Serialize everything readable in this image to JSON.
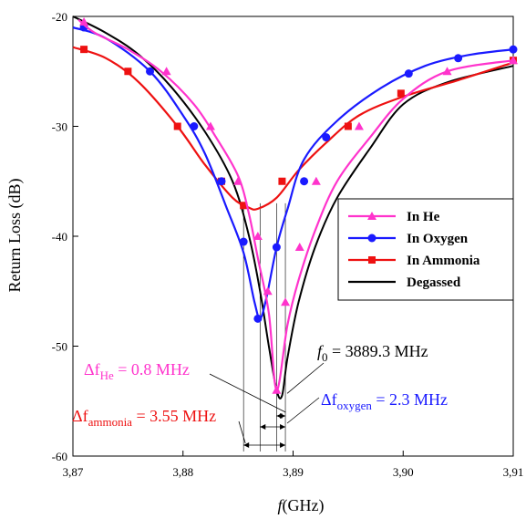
{
  "chart_data": {
    "type": "line",
    "xlabel": "(GHz)",
    "xlabel_var": "f",
    "ylabel": "Return Loss (dB)",
    "xlim": [
      3.87,
      3.91
    ],
    "ylim": [
      -60,
      -20
    ],
    "x_ticks": [
      3.87,
      3.88,
      3.89,
      3.9,
      3.91
    ],
    "x_tick_labels": [
      "3,87",
      "3,88",
      "3,89",
      "3,90",
      "3,91"
    ],
    "y_ticks": [
      -60,
      -50,
      -40,
      -30,
      -20
    ],
    "y_tick_labels": [
      "-60",
      "-50",
      "-40",
      "-30",
      "-20"
    ],
    "legend_position": "right",
    "series": [
      {
        "name": "In He",
        "color": "#ff33cc",
        "marker": "triangle",
        "x": [
          3.8705,
          3.872,
          3.875,
          3.878,
          3.881,
          3.883,
          3.885,
          3.886,
          3.8868,
          3.8878,
          3.8885,
          3.8895,
          3.8905,
          3.892,
          3.894,
          3.897,
          3.9,
          3.904,
          3.91
        ],
        "y": [
          -20.3,
          -21.5,
          -23,
          -25,
          -28,
          -31,
          -34.5,
          -38,
          -42,
          -47,
          -54,
          -48,
          -44,
          -39.5,
          -35,
          -31,
          -27.5,
          -25,
          -24
        ],
        "marker_x": [
          3.871,
          3.8785,
          3.8825,
          3.885,
          3.8868,
          3.8877,
          3.8885,
          3.8893,
          3.8906,
          3.8921,
          3.896,
          3.904,
          3.91
        ],
        "marker_y": [
          -20.5,
          -25,
          -30,
          -35,
          -40,
          -45,
          -54,
          -46,
          -41,
          -35,
          -30,
          -25,
          -24
        ]
      },
      {
        "name": "In Oxygen",
        "color": "#1a1aff",
        "marker": "circle",
        "x": [
          3.87,
          3.873,
          3.877,
          3.88,
          3.882,
          3.884,
          3.8855,
          3.8865,
          3.887,
          3.8876,
          3.8885,
          3.8895,
          3.891,
          3.894,
          3.898,
          3.902,
          3.906,
          3.91
        ],
        "y": [
          -21,
          -22,
          -25,
          -29,
          -32.5,
          -37.5,
          -41.5,
          -46,
          -47.5,
          -45.5,
          -41,
          -37.5,
          -33,
          -29.5,
          -26.5,
          -24.5,
          -23.5,
          -23
        ],
        "marker_x": [
          3.871,
          3.877,
          3.881,
          3.8835,
          3.8855,
          3.8868,
          3.8885,
          3.891,
          3.893,
          3.9005,
          3.905,
          3.91
        ],
        "marker_y": [
          -21,
          -25,
          -30,
          -35,
          -40.5,
          -47.5,
          -41,
          -35,
          -31,
          -25.2,
          -23.8,
          -23
        ]
      },
      {
        "name": "In Ammonia",
        "color": "#ee1111",
        "marker": "square",
        "x": [
          3.87,
          3.873,
          3.876,
          3.8795,
          3.882,
          3.8845,
          3.886,
          3.8868,
          3.8885,
          3.8905,
          3.893,
          3.896,
          3.9,
          3.905,
          3.91
        ],
        "y": [
          -22.8,
          -23.8,
          -26,
          -30,
          -33.5,
          -36.5,
          -37.4,
          -37.5,
          -36.5,
          -34,
          -31.5,
          -29,
          -27.3,
          -25.8,
          -24.2
        ],
        "marker_x": [
          3.871,
          3.875,
          3.8795,
          3.8835,
          3.8855,
          3.889,
          3.895,
          3.8998,
          3.91
        ],
        "marker_y": [
          -23,
          -25,
          -30,
          -35,
          -37.2,
          -35,
          -30,
          -27,
          -24
        ]
      },
      {
        "name": "Degassed",
        "color": "#000000",
        "marker": "none",
        "x": [
          3.87,
          3.873,
          3.876,
          3.879,
          3.882,
          3.8845,
          3.886,
          3.887,
          3.8878,
          3.8885,
          3.889,
          3.8895,
          3.8905,
          3.892,
          3.894,
          3.897,
          3.9,
          3.904,
          3.91
        ],
        "y": [
          -20,
          -21.5,
          -23.5,
          -26.5,
          -30.5,
          -35,
          -40,
          -45,
          -50,
          -54,
          -54.5,
          -51,
          -46,
          -41,
          -36.5,
          -32,
          -28,
          -26,
          -24.5
        ]
      }
    ],
    "annotations": {
      "f0": {
        "sym": "f",
        "sub": "0",
        "text": " = 3889.3 MHz",
        "color": "#000000",
        "x": 3.8893,
        "y": -54.5
      },
      "df_he": {
        "sym": "Δf",
        "sub": "He",
        "text": " = 0.8 MHz",
        "color": "#ff33cc"
      },
      "df_oxygen": {
        "sym": "Δf",
        "sub": "oxygen",
        "text": " = 2.3 MHz",
        "color": "#1a1aff"
      },
      "df_ammonia": {
        "sym": "Δf",
        "sub": "ammonia",
        "text": " = 3.55 MHz",
        "color": "#ee1111"
      }
    },
    "vertical_markers_x": [
      3.8855,
      3.887,
      3.8885,
      3.8893
    ]
  }
}
